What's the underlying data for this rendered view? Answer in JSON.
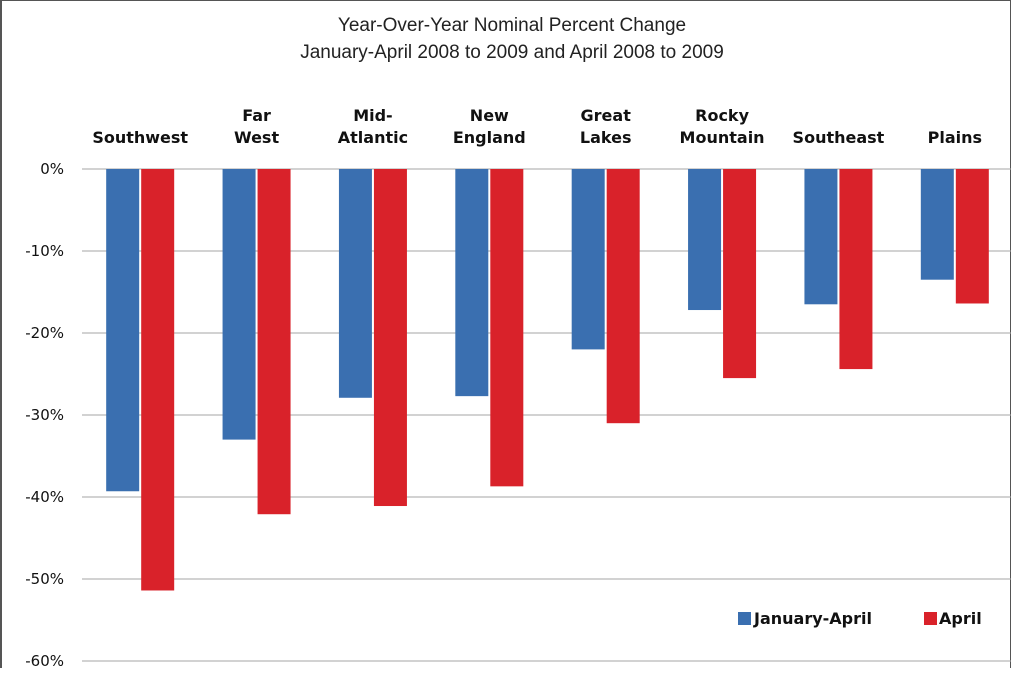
{
  "chart_data": {
    "type": "bar",
    "title": "Year-Over-Year Nominal Percent Change",
    "subtitle": "January-April 2008 to 2009 and April 2008 to 2009",
    "categories": [
      [
        "Southwest"
      ],
      [
        "Far",
        "West"
      ],
      [
        "Mid-",
        "Atlantic"
      ],
      [
        "New",
        "England"
      ],
      [
        "Great",
        "Lakes"
      ],
      [
        "Rocky",
        "Mountain"
      ],
      [
        "Southeast"
      ],
      [
        "Plains"
      ]
    ],
    "series": [
      {
        "name": "January-April",
        "color": "#3a6fb0",
        "values": [
          -39.3,
          -33.0,
          -27.9,
          -27.7,
          -22.0,
          -17.2,
          -16.5,
          -13.5
        ]
      },
      {
        "name": "April",
        "color": "#d9222a",
        "values": [
          -51.4,
          -42.1,
          -41.1,
          -38.7,
          -31.0,
          -25.5,
          -24.4,
          -16.4
        ]
      }
    ],
    "ylim": [
      -60,
      0
    ],
    "yticks": [
      0,
      -10,
      -20,
      -30,
      -40,
      -50,
      -60
    ],
    "ytick_labels": [
      "0%",
      "-10%",
      "-20%",
      "-30%",
      "-40%",
      "-50%",
      "-60%"
    ],
    "grid": true,
    "legend_position": "bottom-right",
    "category_labels_position": "top"
  }
}
